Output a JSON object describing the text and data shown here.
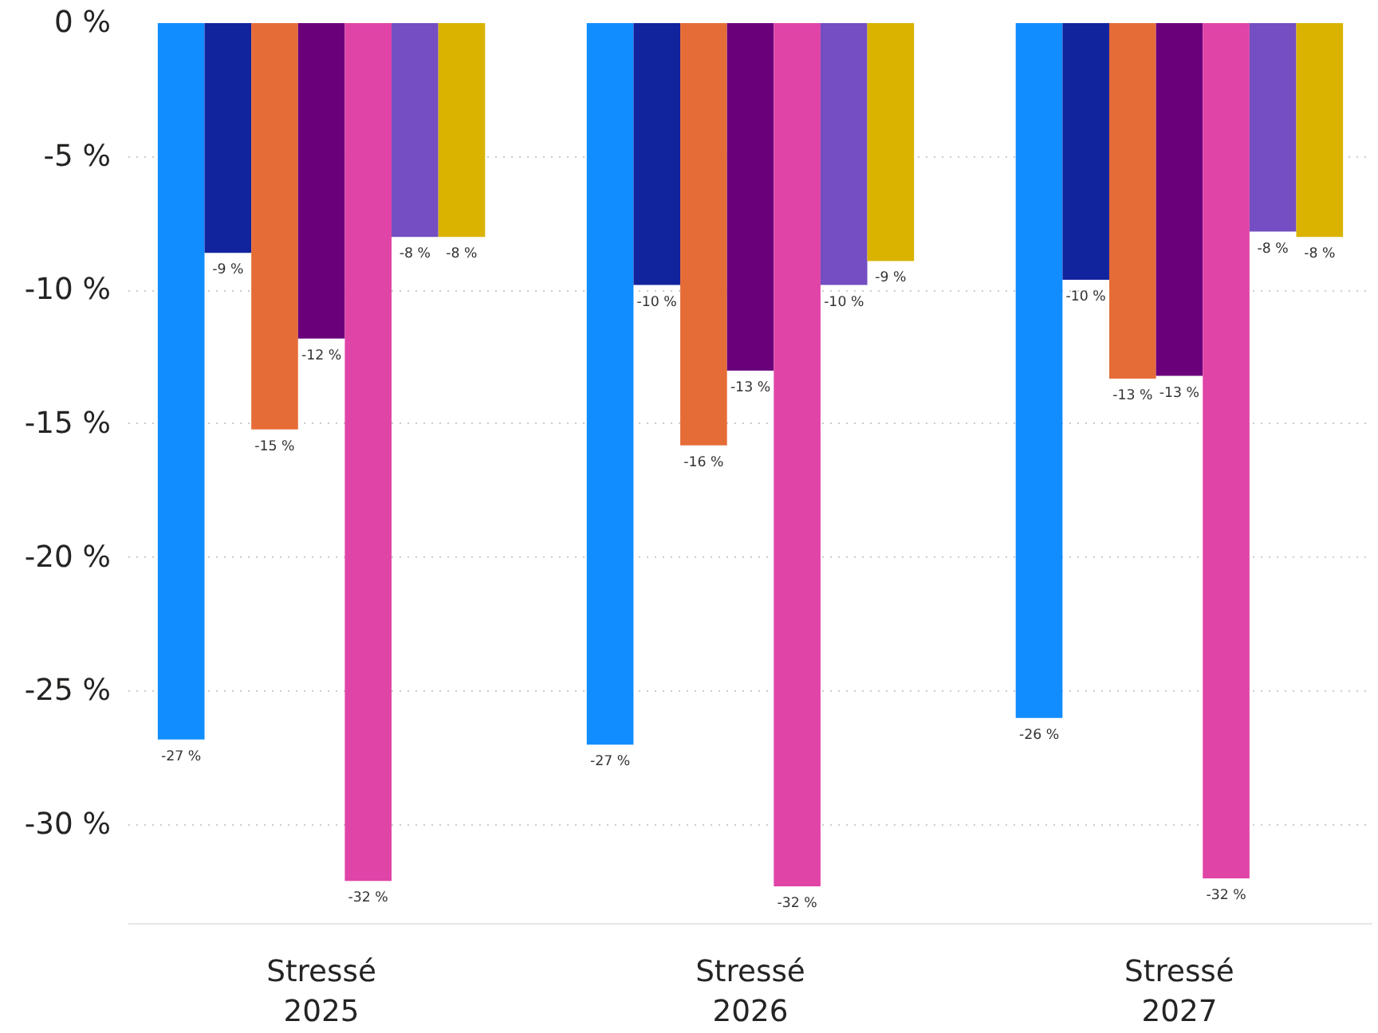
{
  "chart_data": {
    "type": "bar",
    "categories": [
      "Stressé\n2025",
      "Stressé\n2026",
      "Stressé\n2027"
    ],
    "series": [
      {
        "color": "#118dff",
        "values": [
          -26.8,
          -27.0,
          -26.0
        ],
        "value_labels": [
          "-27 %",
          "-27 %",
          "-26 %"
        ]
      },
      {
        "color": "#12239e",
        "values": [
          -8.6,
          -9.8,
          -9.6
        ],
        "value_labels": [
          "-9 %",
          "-10 %",
          "-10 %"
        ]
      },
      {
        "color": "#e66c37",
        "values": [
          -15.2,
          -15.8,
          -13.3
        ],
        "value_labels": [
          "-15 %",
          "-16 %",
          "-13 %"
        ]
      },
      {
        "color": "#6b007b",
        "values": [
          -11.8,
          -13.0,
          -13.2
        ],
        "value_labels": [
          "-12 %",
          "-13 %",
          "-13 %"
        ]
      },
      {
        "color": "#e044a7",
        "values": [
          -32.1,
          -32.3,
          -32.0
        ],
        "value_labels": [
          "-32 %",
          "-32 %",
          "-32 %"
        ]
      },
      {
        "color": "#744ec2",
        "values": [
          -8.0,
          -9.8,
          -7.8
        ],
        "value_labels": [
          "-8 %",
          "-10 %",
          "-8 %"
        ]
      },
      {
        "color": "#d9b300",
        "values": [
          -8.0,
          -8.9,
          -8.0
        ],
        "value_labels": [
          "-8 %",
          "-9 %",
          "-8 %"
        ]
      }
    ],
    "ylim": [
      -33.7,
      0
    ],
    "yticks": [
      {
        "value": 0,
        "label": "0 %"
      },
      {
        "value": -5,
        "label": "-5 %"
      },
      {
        "value": -10,
        "label": "-10 %"
      },
      {
        "value": -15,
        "label": "-15 %"
      },
      {
        "value": -20,
        "label": "-20 %"
      },
      {
        "value": -25,
        "label": "-25 %"
      },
      {
        "value": -30,
        "label": "-30 %"
      }
    ],
    "grid": "y"
  }
}
